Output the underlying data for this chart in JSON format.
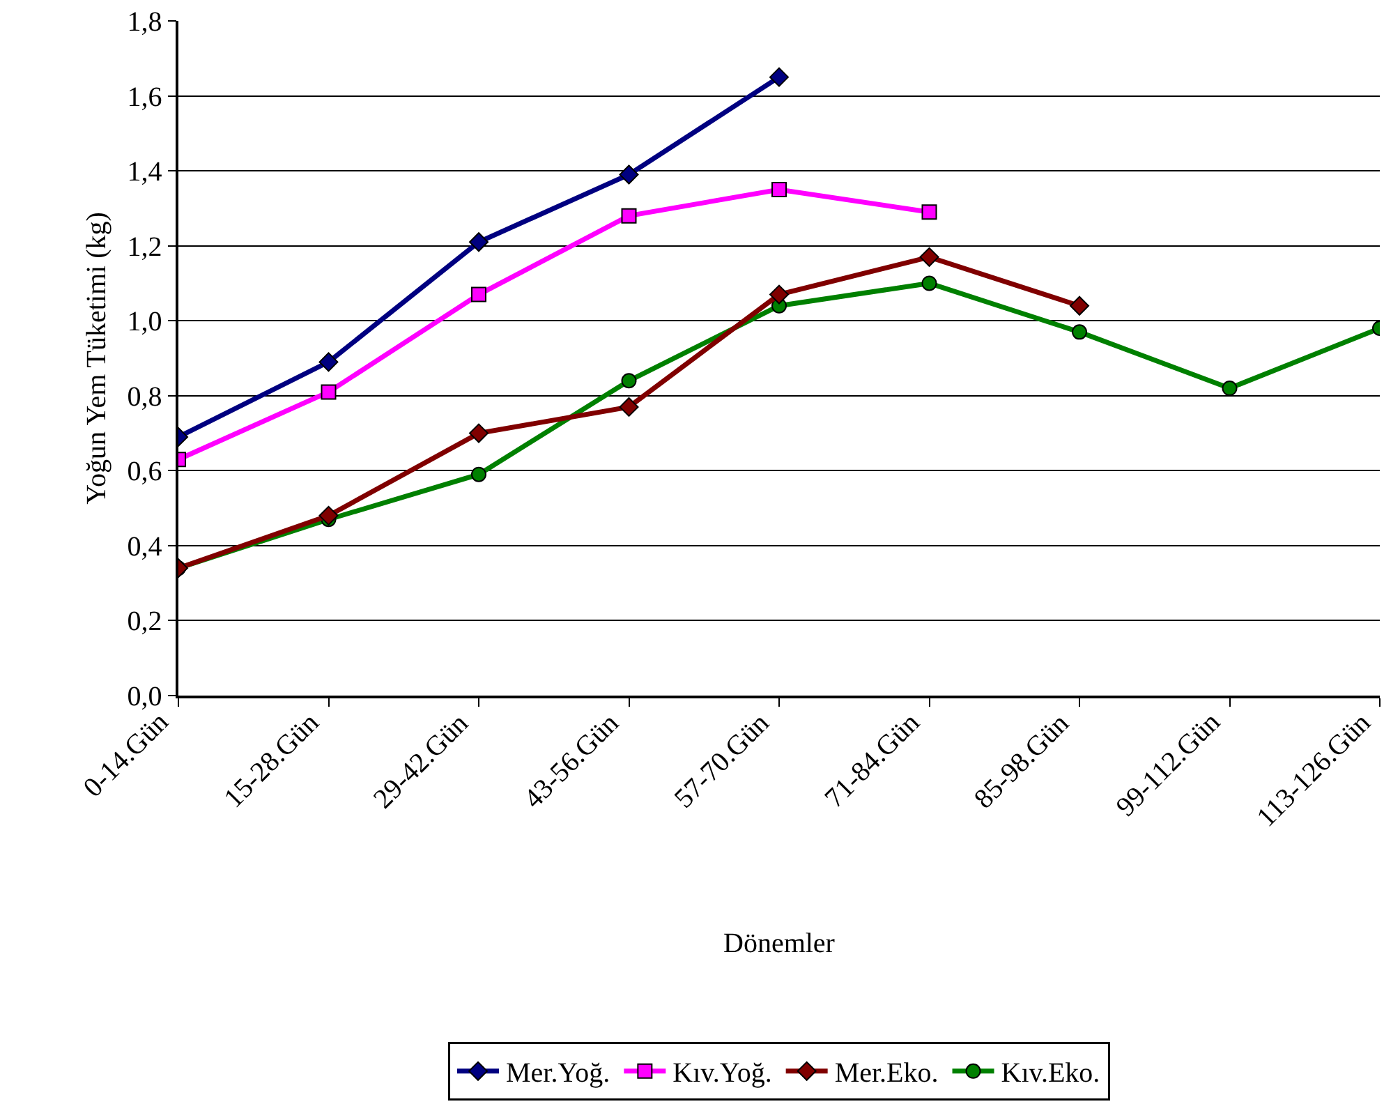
{
  "chart_data": {
    "type": "line",
    "xlabel": "Dönemler",
    "ylabel": "Yoğun Yem Tüketimi (kg)",
    "categories": [
      "0-14.Gün",
      "15-28.Gün",
      "29-42.Gün",
      "43-56.Gün",
      "57-70.Gün",
      "71-84.Gün",
      "85-98.Gün",
      "99-112.Gün",
      "113-126.Gün"
    ],
    "series": [
      {
        "name": "Mer.Yoğ.",
        "color": "#000080",
        "marker": "diamond",
        "values": [
          0.69,
          0.89,
          1.21,
          1.39,
          1.65,
          null,
          null,
          null,
          null
        ]
      },
      {
        "name": "Kıv.Yoğ.",
        "color": "#ff00ff",
        "marker": "square",
        "values": [
          0.63,
          0.81,
          1.07,
          1.28,
          1.35,
          1.29,
          null,
          null,
          null
        ]
      },
      {
        "name": "Mer.Eko.",
        "color": "#800000",
        "marker": "diamond",
        "values": [
          0.34,
          0.48,
          0.7,
          0.77,
          1.07,
          1.17,
          1.04,
          null,
          null
        ]
      },
      {
        "name": "Kıv.Eko.",
        "color": "#008000",
        "marker": "circle",
        "values": [
          0.34,
          0.47,
          0.59,
          0.84,
          1.04,
          1.1,
          0.97,
          0.82,
          0.98
        ]
      }
    ],
    "ylim": [
      0,
      1.8
    ],
    "yticks": [
      {
        "value": 0,
        "label": "0,0"
      },
      {
        "value": 0.2,
        "label": "0,2"
      },
      {
        "value": 0.4,
        "label": "0,4"
      },
      {
        "value": 0.6,
        "label": "0,6"
      },
      {
        "value": 0.8,
        "label": "0,8"
      },
      {
        "value": 1,
        "label": "1,0"
      },
      {
        "value": 1.2,
        "label": "1,2"
      },
      {
        "value": 1.4,
        "label": "1,4"
      },
      {
        "value": 1.6,
        "label": "1,6"
      },
      {
        "value": 1.8,
        "label": "1,8"
      }
    ],
    "grid": "y",
    "legend": "bottom",
    "line_style": "solid"
  }
}
